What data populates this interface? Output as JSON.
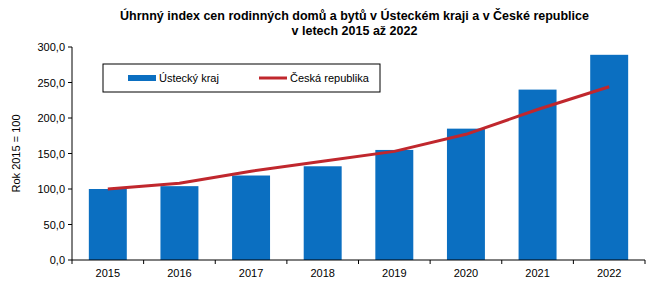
{
  "chart_data": {
    "type": "bar",
    "title": "Úhrnný index cen rodinných domů a bytů v Ústeckém kraji a v České republice\nv letech 2015 až 2022",
    "y_label": "Rok 2015 = 100",
    "categories": [
      "2015",
      "2016",
      "2017",
      "2018",
      "2019",
      "2020",
      "2021",
      "2022"
    ],
    "series": [
      {
        "name": "Ústecký kraj",
        "type": "bar",
        "color": "#0b6fc1",
        "values": [
          100,
          104,
          119,
          132,
          155,
          185,
          240,
          289
        ]
      },
      {
        "name": "Česká republika",
        "type": "line",
        "color": "#c0272d",
        "values": [
          100,
          108,
          125,
          139,
          153,
          177,
          212,
          244
        ]
      }
    ],
    "ylim": [
      0,
      300
    ],
    "yticks": [
      {
        "value": 0,
        "label": "0,0"
      },
      {
        "value": 50,
        "label": "50,0"
      },
      {
        "value": 100,
        "label": "100,0"
      },
      {
        "value": 150,
        "label": "150,0"
      },
      {
        "value": 200,
        "label": "200,0"
      },
      {
        "value": 250,
        "label": "250,0"
      },
      {
        "value": 300,
        "label": "300,0"
      }
    ],
    "grid": false,
    "legend": "upper left"
  }
}
